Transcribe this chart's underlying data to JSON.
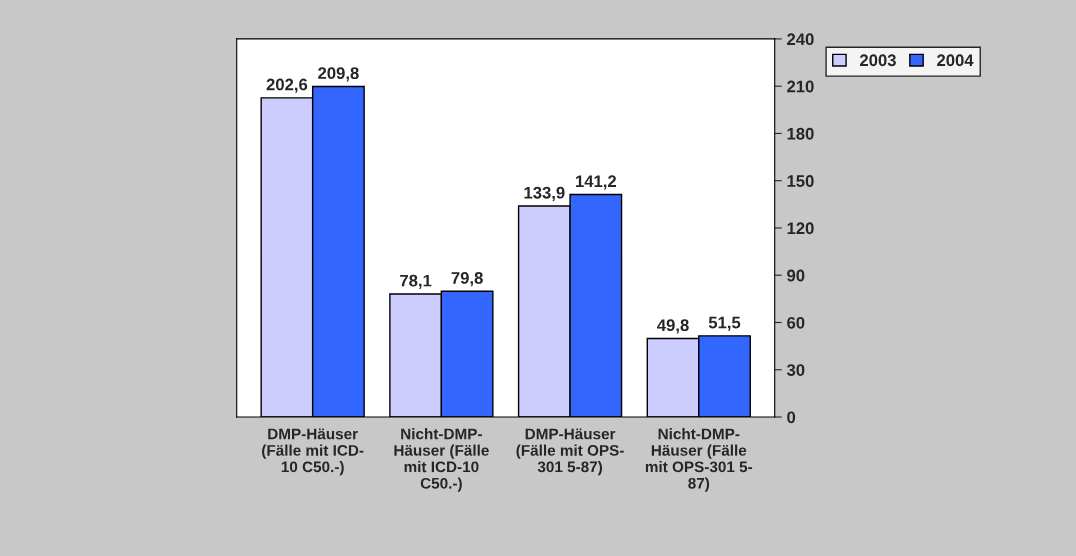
{
  "chart_data": {
    "type": "bar",
    "categories": [
      "DMP-Häuser\n(Fälle mit ICD-\n10 C50.-)",
      "Nicht-DMP-\nHäuser (Fälle\nmit ICD-10\nC50.-)",
      "DMP-Häuser\n(Fälle mit OPS-\n301 5-87)",
      "Nicht-DMP-\nHäuser (Fälle\nmit OPS-301 5-\n87)"
    ],
    "series": [
      {
        "name": "2003",
        "color": "#ccccff",
        "values": [
          202.6,
          78.1,
          133.9,
          49.8
        ],
        "value_labels": [
          "202,6",
          "78,1",
          "133,9",
          "49,8"
        ]
      },
      {
        "name": "2004",
        "color": "#3366ff",
        "values": [
          209.8,
          79.8,
          141.2,
          51.5
        ],
        "value_labels": [
          "209,8",
          "79,8",
          "141,2",
          "51,5"
        ]
      }
    ],
    "ylim": [
      0,
      240
    ],
    "yticks": [
      0,
      30,
      60,
      90,
      120,
      150,
      180,
      210,
      240
    ],
    "grid": false,
    "legend": "top right"
  }
}
